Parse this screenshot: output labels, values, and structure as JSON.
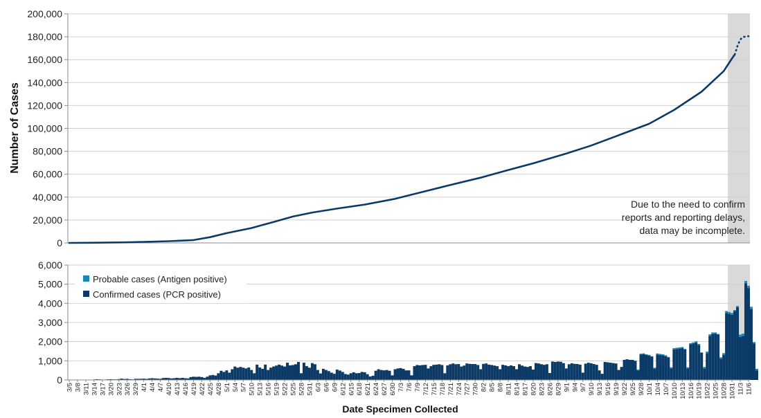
{
  "chart_data": [
    {
      "type": "line",
      "ylabel": "Number of Cases",
      "ylim": [
        0,
        200000
      ],
      "yticks": [
        "0",
        "20,000",
        "40,000",
        "60,000",
        "80,000",
        "100,000",
        "120,000",
        "140,000",
        "160,000",
        "180,000",
        "200,000"
      ],
      "grid": true,
      "annotation": [
        "Due to the need to confirm",
        "reports and reporting delays,",
        "data may be incomplete."
      ],
      "shaded_region": {
        "from": "10/30",
        "to": "11/6"
      },
      "series": [
        {
          "color": "#0b3a66",
          "style": "solid",
          "points": [
            [
              "3/5",
              0
            ],
            [
              "3/15",
              200
            ],
            [
              "3/25",
              500
            ],
            [
              "4/1",
              900
            ],
            [
              "4/10",
              1500
            ],
            [
              "4/19",
              2500
            ],
            [
              "4/25",
              5000
            ],
            [
              "5/1",
              8500
            ],
            [
              "5/10",
              13000
            ],
            [
              "5/19",
              19000
            ],
            [
              "5/25",
              23000
            ],
            [
              "6/1",
              26500
            ],
            [
              "6/10",
              30000
            ],
            [
              "6/20",
              33500
            ],
            [
              "7/1",
              38500
            ],
            [
              "7/10",
              44000
            ],
            [
              "7/20",
              50000
            ],
            [
              "8/1",
              57000
            ],
            [
              "8/10",
              63000
            ],
            [
              "8/20",
              69500
            ],
            [
              "9/1",
              78000
            ],
            [
              "9/10",
              85000
            ],
            [
              "9/20",
              94000
            ],
            [
              "10/1",
              104000
            ],
            [
              "10/10",
              116000
            ],
            [
              "10/20",
              132000
            ],
            [
              "10/28",
              150000
            ],
            [
              "10/31",
              161000
            ],
            [
              "11/1",
              164500
            ]
          ]
        },
        {
          "color": "#0b3a66",
          "style": "dotted",
          "points": [
            [
              "11/1",
              164500
            ],
            [
              "11/2",
              172000
            ],
            [
              "11/3",
              177500
            ],
            [
              "11/4",
              179800
            ],
            [
              "11/6",
              180500
            ]
          ]
        }
      ]
    },
    {
      "type": "bar",
      "xlabel": "Date Specimen Collected",
      "ylim": [
        0,
        6000
      ],
      "yticks": [
        "0",
        "1,000",
        "2,000",
        "3,000",
        "4,000",
        "5,000",
        "6,000"
      ],
      "grid": true,
      "legend_position": "top-left",
      "series": [
        {
          "name": "Probable cases (Antigen positive)",
          "color": "#1a87b5"
        },
        {
          "name": "Confirmed cases (PCR positive)",
          "color": "#0b3a66"
        }
      ],
      "categories": [
        "3/5",
        "3/8",
        "3/11",
        "3/14",
        "3/17",
        "3/20",
        "3/23",
        "3/26",
        "3/29",
        "4/1",
        "4/4",
        "4/7",
        "4/10",
        "4/13",
        "4/16",
        "4/19",
        "4/22",
        "4/25",
        "4/28",
        "5/1",
        "5/4",
        "5/7",
        "5/10",
        "5/13",
        "5/16",
        "5/19",
        "5/22",
        "5/25",
        "5/28",
        "5/31",
        "6/3",
        "6/6",
        "6/9",
        "6/12",
        "6/15",
        "6/18",
        "6/21",
        "6/24",
        "6/27",
        "6/30",
        "7/3",
        "7/6",
        "7/9",
        "7/12",
        "7/15",
        "7/18",
        "7/21",
        "7/24",
        "7/27",
        "7/30",
        "8/2",
        "8/5",
        "8/8",
        "8/11",
        "8/14",
        "8/17",
        "8/20",
        "8/23",
        "8/26",
        "8/29",
        "9/1",
        "9/4",
        "9/7",
        "9/10",
        "9/13",
        "9/16",
        "9/19",
        "9/22",
        "9/25",
        "9/28",
        "10/1",
        "10/4",
        "10/7",
        "10/10",
        "10/13",
        "10/16",
        "10/19",
        "10/22",
        "10/25",
        "10/28",
        "10/31",
        "11/3",
        "11/6"
      ],
      "bar_start": "3/5",
      "confirmed": [
        0,
        0,
        0,
        10,
        10,
        10,
        15,
        10,
        10,
        25,
        40,
        30,
        20,
        20,
        35,
        40,
        30,
        30,
        45,
        70,
        50,
        60,
        40,
        30,
        60,
        60,
        60,
        70,
        55,
        80,
        90,
        80,
        70,
        60,
        100,
        110,
        100,
        80,
        90,
        110,
        90,
        110,
        90,
        80,
        150,
        170,
        160,
        170,
        150,
        110,
        170,
        240,
        260,
        230,
        350,
        480,
        420,
        500,
        380,
        560,
        700,
        640,
        680,
        640,
        600,
        650,
        520,
        350,
        800,
        650,
        580,
        800,
        520,
        640,
        700,
        750,
        800,
        750,
        700,
        900,
        760,
        780,
        820,
        940,
        350,
        900,
        720,
        640,
        880,
        820,
        520,
        340,
        580,
        520,
        460,
        380,
        320,
        540,
        490,
        420,
        310,
        280,
        350,
        400,
        350,
        360,
        420,
        400,
        300,
        180,
        220,
        480,
        560,
        520,
        500,
        520,
        480,
        240,
        560,
        600,
        620,
        580,
        500,
        500,
        240,
        720,
        780,
        760,
        780,
        790,
        600,
        720,
        790,
        800,
        820,
        780,
        350,
        760,
        820,
        860,
        820,
        830,
        700,
        750,
        860,
        840,
        830,
        830,
        780,
        560,
        840,
        860,
        800,
        780,
        750,
        720,
        560,
        790,
        760,
        720,
        760,
        720,
        560,
        820,
        750,
        700,
        680,
        720,
        540,
        880,
        860,
        820,
        790,
        820,
        360,
        960,
        940,
        960,
        950,
        880,
        600,
        820,
        870,
        840,
        830,
        800,
        380,
        850,
        900,
        870,
        830,
        790,
        500,
        320,
        940,
        920,
        900,
        880,
        860,
        520,
        680,
        1050,
        1080,
        1050,
        1050,
        1000,
        500,
        1320,
        1340,
        1300,
        1270,
        1220,
        580,
        1320,
        1300,
        1280,
        1240,
        1180,
        600,
        1600,
        1620,
        1640,
        1660,
        1600,
        600,
        1860,
        1900,
        1960,
        1820,
        1420,
        600,
        1400,
        2300,
        2400,
        2420,
        2380,
        1100,
        1300,
        3500,
        3450,
        3400,
        3600,
        3800,
        2250,
        2300,
        5050,
        4800,
        3700,
        1900,
        500
      ],
      "probable": [
        0,
        0,
        0,
        0,
        0,
        0,
        0,
        0,
        0,
        0,
        0,
        0,
        0,
        0,
        0,
        0,
        0,
        0,
        0,
        0,
        0,
        0,
        0,
        0,
        0,
        0,
        0,
        0,
        0,
        0,
        0,
        0,
        0,
        0,
        0,
        0,
        0,
        0,
        0,
        0,
        0,
        0,
        0,
        0,
        0,
        0,
        0,
        0,
        0,
        0,
        0,
        0,
        0,
        0,
        0,
        0,
        0,
        0,
        0,
        0,
        0,
        0,
        0,
        0,
        0,
        0,
        0,
        0,
        0,
        0,
        0,
        0,
        0,
        0,
        0,
        0,
        0,
        0,
        0,
        0,
        0,
        0,
        0,
        0,
        0,
        0,
        0,
        0,
        0,
        0,
        0,
        0,
        0,
        0,
        0,
        0,
        0,
        0,
        0,
        0,
        0,
        0,
        0,
        0,
        0,
        0,
        0,
        0,
        0,
        0,
        0,
        0,
        0,
        0,
        0,
        0,
        0,
        0,
        0,
        0,
        0,
        0,
        0,
        0,
        0,
        0,
        0,
        0,
        0,
        0,
        0,
        0,
        0,
        0,
        0,
        0,
        0,
        0,
        0,
        0,
        0,
        0,
        0,
        0,
        0,
        0,
        0,
        0,
        0,
        0,
        0,
        0,
        0,
        0,
        0,
        0,
        0,
        0,
        0,
        0,
        0,
        0,
        0,
        0,
        0,
        0,
        0,
        0,
        0,
        0,
        0,
        0,
        0,
        0,
        0,
        0,
        0,
        0,
        0,
        0,
        0,
        0,
        0,
        0,
        0,
        0,
        0,
        0,
        0,
        0,
        0,
        0,
        0,
        0,
        0,
        0,
        0,
        0,
        0,
        0,
        0,
        0,
        0,
        0,
        0,
        0,
        40,
        50,
        50,
        40,
        40,
        20,
        60,
        60,
        60,
        60,
        50,
        20,
        60,
        60,
        60,
        60,
        60,
        20,
        60,
        60,
        60,
        60,
        60,
        20,
        80,
        80,
        80,
        80,
        60,
        20,
        80,
        100,
        100,
        100,
        100,
        50,
        60,
        120,
        120,
        120,
        120,
        120,
        80,
        80,
        200,
        150,
        120,
        60,
        20
      ]
    }
  ]
}
